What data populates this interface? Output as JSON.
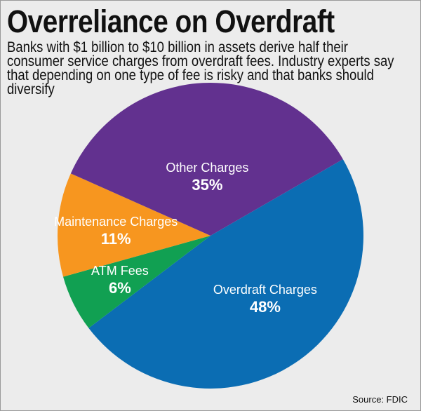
{
  "title": "Overreliance on Overdraft",
  "subtitle": "Banks with $1 billion to $10 billion in assets derive half their consumer service charges from overdraft fees. Industry experts say that depending on one type of fee is risky and that banks should diversify",
  "source": "Source: FDIC",
  "chart_data": {
    "type": "pie",
    "title": "Overreliance on Overdraft",
    "categories": [
      "Overdraft Charges",
      "ATM Fees",
      "Maintenance Charges",
      "Other Charges"
    ],
    "values": [
      48,
      6,
      11,
      35
    ],
    "labels": [
      "48%",
      "6%",
      "11%",
      "35%"
    ],
    "colors": [
      "#0b6db3",
      "#11a052",
      "#f7961f",
      "#62318f"
    ],
    "start_angle_deg": -30,
    "direction": "clockwise"
  }
}
